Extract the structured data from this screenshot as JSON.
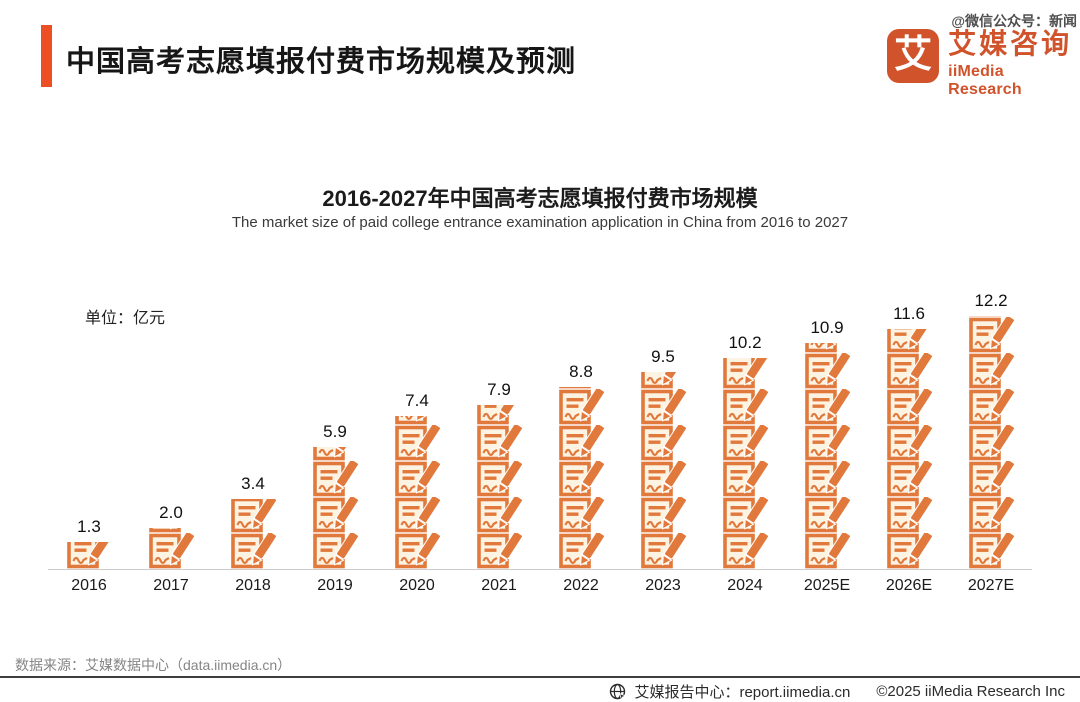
{
  "header": {
    "title": "中国高考志愿填报付费市场规模及预测",
    "watermark": "@微信公众号：新闻",
    "logo": {
      "glyph": "艾",
      "brand_cn": "艾媒咨询",
      "brand_en": "iiMedia Research"
    }
  },
  "chart": {
    "title": "2016-2027年中国高考志愿填报付费市场规模",
    "subtitle": "The market size of paid college entrance examination application in China from 2016 to 2027",
    "unit_label": "单位：亿元"
  },
  "chart_data": {
    "type": "bar",
    "categories": [
      "2016",
      "2017",
      "2018",
      "2019",
      "2020",
      "2021",
      "2022",
      "2023",
      "2024",
      "2025E",
      "2026E",
      "2027E"
    ],
    "values": [
      1.3,
      2.0,
      3.4,
      5.9,
      7.4,
      7.9,
      8.8,
      9.5,
      10.2,
      10.9,
      11.6,
      12.2
    ],
    "value_labels": [
      "1.3",
      "2.0",
      "3.4",
      "5.9",
      "7.4",
      "7.9",
      "8.8",
      "9.5",
      "10.2",
      "10.9",
      "11.6",
      "12.2"
    ],
    "title": "2016-2027年中国高考志愿填报付费市场规模",
    "xlabel": "",
    "ylabel": "亿元",
    "ylim": [
      0,
      13
    ],
    "grid": false,
    "legend": "none",
    "bar_style": "pictogram stack of form-and-pen icons, clipped at top",
    "bar_color": "#E2793C"
  },
  "footer": {
    "source": "数据来源：艾媒数据中心（data.iimedia.cn）",
    "report_center": "艾媒报告中心：report.iimedia.cn",
    "copyright": "©2025  iiMedia Research Inc"
  },
  "colors": {
    "accent": "#EB4F23",
    "logo_orange": "#D0532B",
    "icon_orange": "#E2793C",
    "icon_fill": "#FCF3E2",
    "axis_line": "#CCCCCC",
    "separator": "#3E3E3E"
  }
}
